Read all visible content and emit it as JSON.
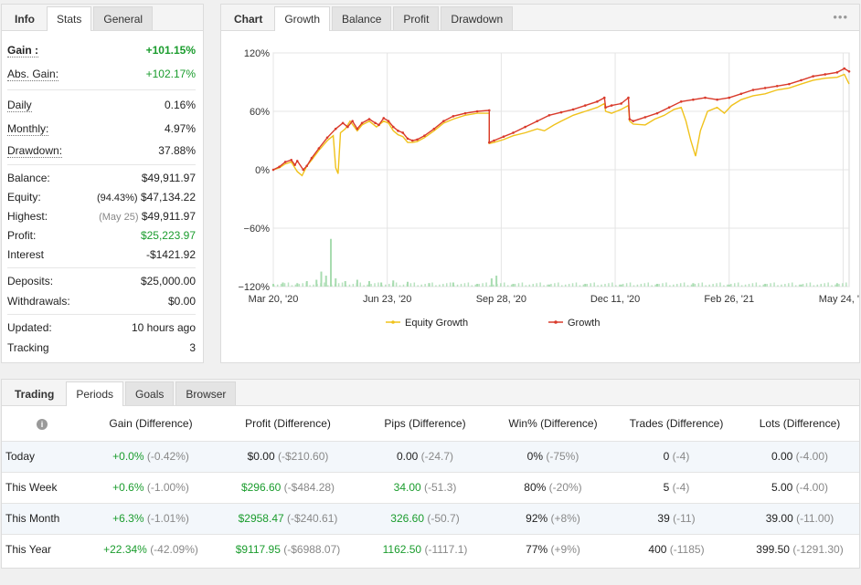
{
  "stats_panel": {
    "tabs": [
      "Info",
      "Stats",
      "General"
    ],
    "gain_label": "Gain :",
    "gain_value": "+101.15%",
    "abs_gain_label": "Abs. Gain:",
    "abs_gain_value": "+102.17%",
    "daily_label": "Daily",
    "daily_value": "0.16%",
    "monthly_label": "Monthly:",
    "monthly_value": "4.97%",
    "drawdown_label": "Drawdown:",
    "drawdown_value": "37.88%",
    "balance_label": "Balance:",
    "balance_value": "$49,911.97",
    "equity_label": "Equity:",
    "equity_pct": "(94.43%)",
    "equity_value": "$47,134.22",
    "highest_label": "Highest:",
    "highest_date": "(May 25)",
    "highest_value": "$49,911.97",
    "profit_label": "Profit:",
    "profit_value": "$25,223.97",
    "interest_label": "Interest",
    "interest_value": "-$1421.92",
    "deposits_label": "Deposits:",
    "deposits_value": "$25,000.00",
    "withdrawals_label": "Withdrawals:",
    "withdrawals_value": "$0.00",
    "updated_label": "Updated:",
    "updated_value": "10 hours ago",
    "tracking_label": "Tracking",
    "tracking_value": "3"
  },
  "chart_panel": {
    "tabs": [
      "Chart",
      "Growth",
      "Balance",
      "Profit",
      "Drawdown"
    ],
    "menu_icon": "more-horizontal-icon"
  },
  "chart_data": {
    "type": "line",
    "title": "Growth",
    "y_ticks": [
      "120%",
      "60%",
      "0%",
      "−60%",
      "−120%"
    ],
    "y_tick_values": [
      120,
      60,
      0,
      -60,
      -120
    ],
    "ylim": [
      -120,
      120
    ],
    "x_ticks": [
      "Mar 20, '20",
      "Jun 23, '20",
      "Sep 28, '20",
      "Dec 11, '20",
      "Feb 26, '21",
      "May 24, '..."
    ],
    "x_tick_positions": [
      0,
      95,
      190,
      285,
      380,
      475
    ],
    "xlim": [
      0,
      480
    ],
    "legend": [
      "Equity Growth",
      "Growth"
    ],
    "series": [
      {
        "name": "Growth",
        "color": "#d93a2b",
        "points": [
          [
            0,
            0
          ],
          [
            5,
            3
          ],
          [
            10,
            8
          ],
          [
            15,
            10
          ],
          [
            18,
            5
          ],
          [
            20,
            9
          ],
          [
            25,
            0
          ],
          [
            28,
            4
          ],
          [
            32,
            12
          ],
          [
            38,
            22
          ],
          [
            45,
            33
          ],
          [
            52,
            42
          ],
          [
            58,
            48
          ],
          [
            62,
            44
          ],
          [
            66,
            50
          ],
          [
            70,
            42
          ],
          [
            74,
            48
          ],
          [
            80,
            52
          ],
          [
            85,
            48
          ],
          [
            88,
            46
          ],
          [
            92,
            53
          ],
          [
            96,
            50
          ],
          [
            100,
            44
          ],
          [
            104,
            40
          ],
          [
            108,
            38
          ],
          [
            112,
            32
          ],
          [
            116,
            30
          ],
          [
            120,
            31
          ],
          [
            126,
            35
          ],
          [
            134,
            42
          ],
          [
            142,
            50
          ],
          [
            150,
            55
          ],
          [
            160,
            58
          ],
          [
            170,
            60
          ],
          [
            180,
            61
          ],
          [
            180,
            28
          ],
          [
            184,
            30
          ],
          [
            192,
            34
          ],
          [
            200,
            38
          ],
          [
            210,
            44
          ],
          [
            220,
            50
          ],
          [
            230,
            56
          ],
          [
            240,
            59
          ],
          [
            250,
            62
          ],
          [
            260,
            66
          ],
          [
            270,
            70
          ],
          [
            276,
            74
          ],
          [
            277,
            64
          ],
          [
            282,
            66
          ],
          [
            290,
            68
          ],
          [
            296,
            74
          ],
          [
            297,
            52
          ],
          [
            300,
            50
          ],
          [
            310,
            54
          ],
          [
            320,
            58
          ],
          [
            330,
            64
          ],
          [
            340,
            70
          ],
          [
            350,
            72
          ],
          [
            360,
            74
          ],
          [
            370,
            72
          ],
          [
            380,
            74
          ],
          [
            390,
            78
          ],
          [
            400,
            82
          ],
          [
            410,
            84
          ],
          [
            420,
            86
          ],
          [
            430,
            88
          ],
          [
            440,
            92
          ],
          [
            450,
            96
          ],
          [
            460,
            98
          ],
          [
            470,
            100
          ],
          [
            476,
            104
          ],
          [
            480,
            101
          ]
        ]
      },
      {
        "name": "Equity Growth",
        "color": "#f0c21b",
        "points": [
          [
            0,
            0
          ],
          [
            5,
            2
          ],
          [
            10,
            6
          ],
          [
            15,
            8
          ],
          [
            20,
            -2
          ],
          [
            24,
            -6
          ],
          [
            28,
            4
          ],
          [
            32,
            10
          ],
          [
            38,
            20
          ],
          [
            45,
            30
          ],
          [
            50,
            35
          ],
          [
            52,
            2
          ],
          [
            54,
            -4
          ],
          [
            56,
            38
          ],
          [
            60,
            42
          ],
          [
            64,
            50
          ],
          [
            70,
            40
          ],
          [
            74,
            46
          ],
          [
            80,
            50
          ],
          [
            86,
            44
          ],
          [
            92,
            50
          ],
          [
            96,
            48
          ],
          [
            100,
            40
          ],
          [
            104,
            36
          ],
          [
            108,
            34
          ],
          [
            112,
            28
          ],
          [
            116,
            28
          ],
          [
            120,
            29
          ],
          [
            126,
            33
          ],
          [
            134,
            40
          ],
          [
            142,
            48
          ],
          [
            150,
            52
          ],
          [
            160,
            56
          ],
          [
            170,
            58
          ],
          [
            180,
            58
          ],
          [
            180,
            27
          ],
          [
            184,
            28
          ],
          [
            192,
            31
          ],
          [
            200,
            35
          ],
          [
            210,
            38
          ],
          [
            220,
            42
          ],
          [
            226,
            40
          ],
          [
            234,
            46
          ],
          [
            240,
            50
          ],
          [
            250,
            56
          ],
          [
            260,
            60
          ],
          [
            270,
            64
          ],
          [
            276,
            68
          ],
          [
            277,
            60
          ],
          [
            282,
            58
          ],
          [
            290,
            62
          ],
          [
            296,
            66
          ],
          [
            297,
            50
          ],
          [
            300,
            47
          ],
          [
            310,
            46
          ],
          [
            318,
            52
          ],
          [
            326,
            56
          ],
          [
            334,
            62
          ],
          [
            340,
            64
          ],
          [
            344,
            50
          ],
          [
            348,
            30
          ],
          [
            352,
            14
          ],
          [
            356,
            40
          ],
          [
            362,
            60
          ],
          [
            370,
            64
          ],
          [
            376,
            58
          ],
          [
            382,
            66
          ],
          [
            390,
            72
          ],
          [
            400,
            76
          ],
          [
            410,
            78
          ],
          [
            420,
            82
          ],
          [
            430,
            84
          ],
          [
            440,
            88
          ],
          [
            450,
            92
          ],
          [
            460,
            94
          ],
          [
            470,
            95
          ],
          [
            476,
            98
          ],
          [
            480,
            88
          ]
        ]
      }
    ],
    "volume_bars": [
      [
        0,
        4
      ],
      [
        8,
        6
      ],
      [
        20,
        5
      ],
      [
        28,
        8
      ],
      [
        36,
        10
      ],
      [
        40,
        22
      ],
      [
        44,
        16
      ],
      [
        48,
        70
      ],
      [
        52,
        12
      ],
      [
        60,
        8
      ],
      [
        70,
        10
      ],
      [
        80,
        8
      ],
      [
        90,
        6
      ],
      [
        100,
        9
      ],
      [
        112,
        7
      ],
      [
        130,
        5
      ],
      [
        150,
        6
      ],
      [
        170,
        4
      ],
      [
        182,
        12
      ],
      [
        186,
        16
      ],
      [
        200,
        4
      ],
      [
        230,
        3
      ],
      [
        260,
        4
      ],
      [
        290,
        3
      ],
      [
        320,
        4
      ],
      [
        350,
        5
      ],
      [
        380,
        3
      ],
      [
        410,
        4
      ],
      [
        440,
        3
      ],
      [
        470,
        5
      ]
    ]
  },
  "periods_panel": {
    "tabs": [
      "Trading",
      "Periods",
      "Goals",
      "Browser"
    ],
    "headers": [
      "Gain (Difference)",
      "Profit (Difference)",
      "Pips (Difference)",
      "Win% (Difference)",
      "Trades (Difference)",
      "Lots (Difference)"
    ],
    "info_icon": "info-icon",
    "rows": [
      {
        "period": "Today",
        "gain": "+0.0%",
        "gain_diff": "(-0.42%)",
        "profit": "$0.00",
        "profit_diff": "(-$210.60)",
        "pips": "0.00",
        "pips_diff": "(-24.7)",
        "win": "0%",
        "win_diff": "(-75%)",
        "trades": "0",
        "trades_diff": "(-4)",
        "lots": "0.00",
        "lots_diff": "(-4.00)"
      },
      {
        "period": "This Week",
        "gain": "+0.6%",
        "gain_diff": "(-1.00%)",
        "profit": "$296.60",
        "profit_diff": "(-$484.28)",
        "pips": "34.00",
        "pips_diff": "(-51.3)",
        "win": "80%",
        "win_diff": "(-20%)",
        "trades": "5",
        "trades_diff": "(-4)",
        "lots": "5.00",
        "lots_diff": "(-4.00)"
      },
      {
        "period": "This Month",
        "gain": "+6.3%",
        "gain_diff": "(-1.01%)",
        "profit": "$2958.47",
        "profit_diff": "(-$240.61)",
        "pips": "326.60",
        "pips_diff": "(-50.7)",
        "win": "92%",
        "win_diff": "(+8%)",
        "trades": "39",
        "trades_diff": "(-11)",
        "lots": "39.00",
        "lots_diff": "(-11.00)"
      },
      {
        "period": "This Year",
        "gain": "+22.34%",
        "gain_diff": "(-42.09%)",
        "profit": "$9117.95",
        "profit_diff": "(-$6988.07)",
        "pips": "1162.50",
        "pips_diff": "(-1117.1)",
        "win": "77%",
        "win_diff": "(+9%)",
        "trades": "400",
        "trades_diff": "(-1185)",
        "lots": "399.50",
        "lots_diff": "(-1291.30)"
      }
    ]
  },
  "colors": {
    "positive": "#1a9c2d",
    "growth_line": "#d93a2b",
    "equity_line": "#f0c21b",
    "volume_bar": "#a8dcb0"
  }
}
